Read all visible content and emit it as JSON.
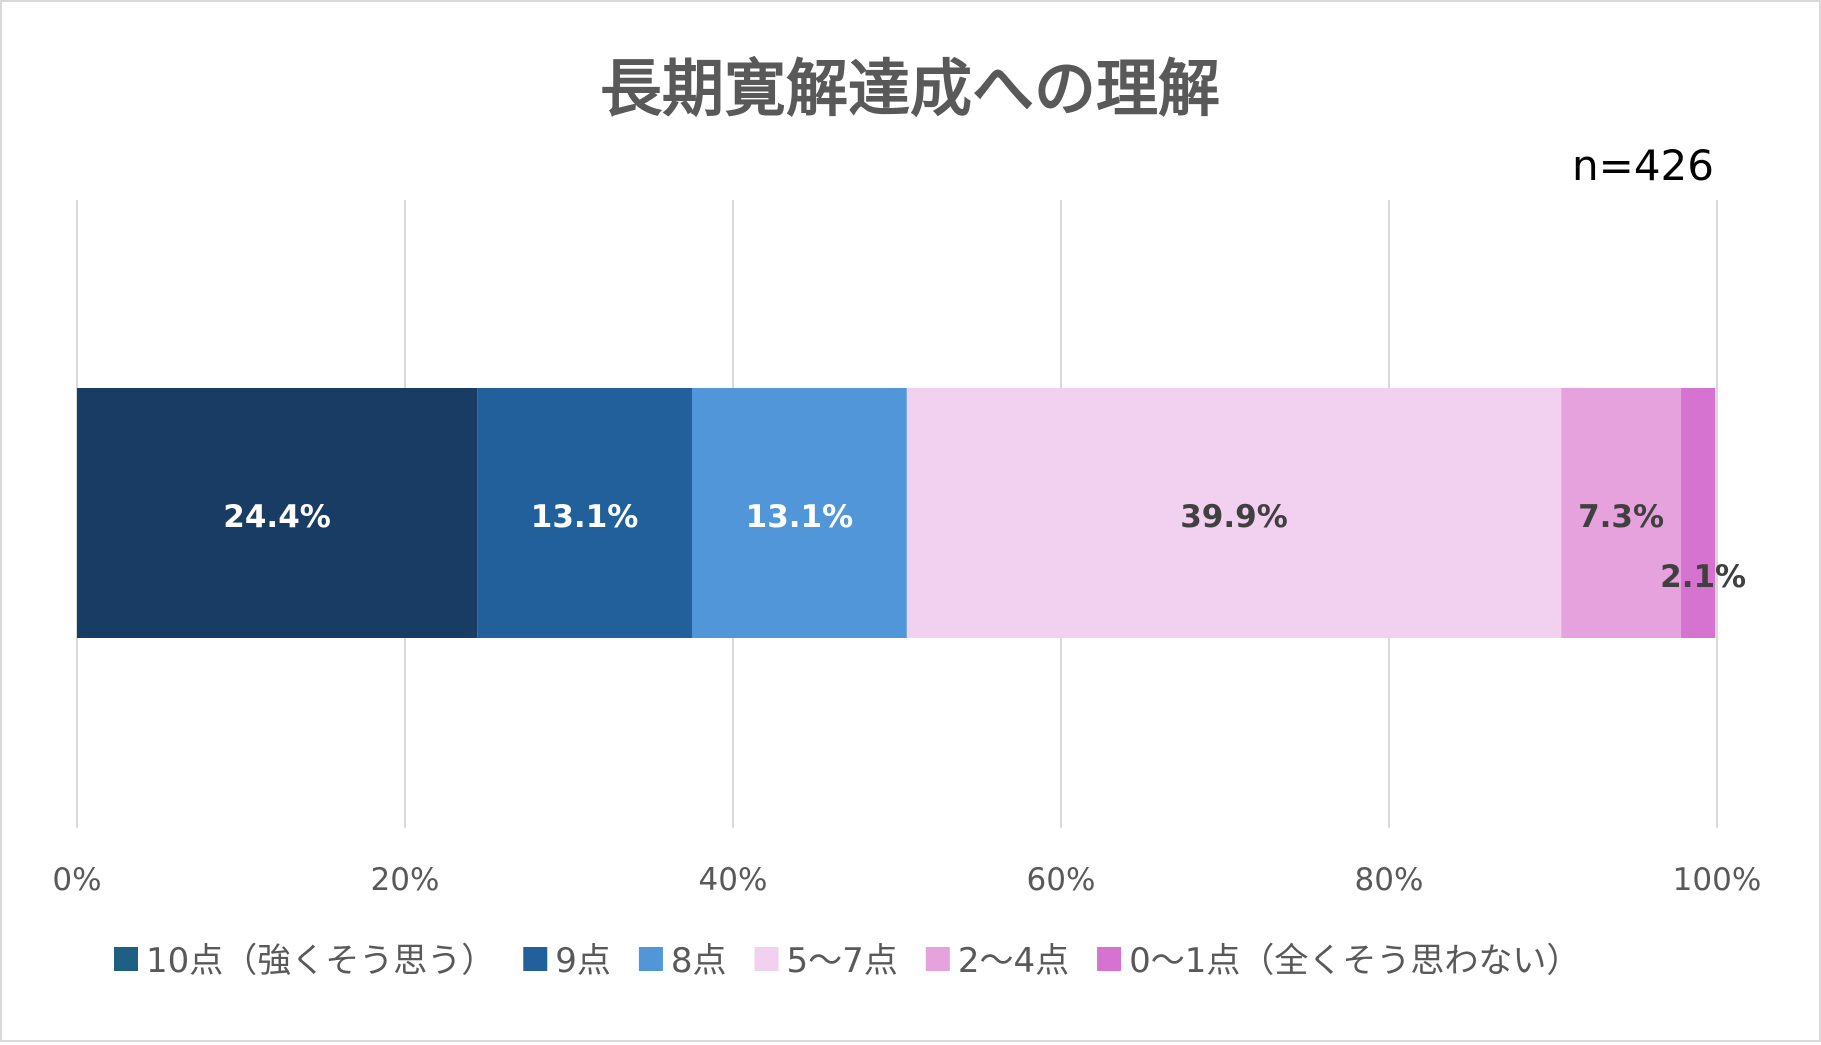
{
  "chart_data": {
    "type": "bar",
    "orientation": "horizontal",
    "stacked": true,
    "percent_stacked": true,
    "title": "長期寛解達成への理解",
    "sample_size_label": "n=426",
    "xlim": [
      0,
      100
    ],
    "x_ticks": [
      0,
      20,
      40,
      60,
      80,
      100
    ],
    "x_tick_labels": [
      "0%",
      "20%",
      "40%",
      "60%",
      "80%",
      "100%"
    ],
    "grid": true,
    "legend_position": "bottom",
    "series": [
      {
        "name": "10点（強くそう思う）",
        "value": 24.4,
        "label": "24.4%",
        "color": "#183c64",
        "legend_color": "#1f5f84",
        "label_color": "#ffffff"
      },
      {
        "name": "9点",
        "value": 13.1,
        "label": "13.1%",
        "color": "#22609c",
        "legend_color": "#22609c",
        "label_color": "#ffffff"
      },
      {
        "name": "8点",
        "value": 13.1,
        "label": "13.1%",
        "color": "#5096d8",
        "legend_color": "#5096d8",
        "label_color": "#ffffff"
      },
      {
        "name": "5〜7点",
        "value": 39.9,
        "label": "39.9%",
        "color": "#f2d0ef",
        "legend_color": "#f2d0ef",
        "label_color": "#404040"
      },
      {
        "name": "2〜4点",
        "value": 7.3,
        "label": "7.3%",
        "color": "#e6a2dd",
        "legend_color": "#e6a2dd",
        "label_color": "#404040"
      },
      {
        "name": "0〜1点（全くそう思わない）",
        "value": 2.1,
        "label": "2.1%",
        "color": "#d672cf",
        "legend_color": "#d672cf",
        "label_color": "#404040"
      }
    ]
  }
}
